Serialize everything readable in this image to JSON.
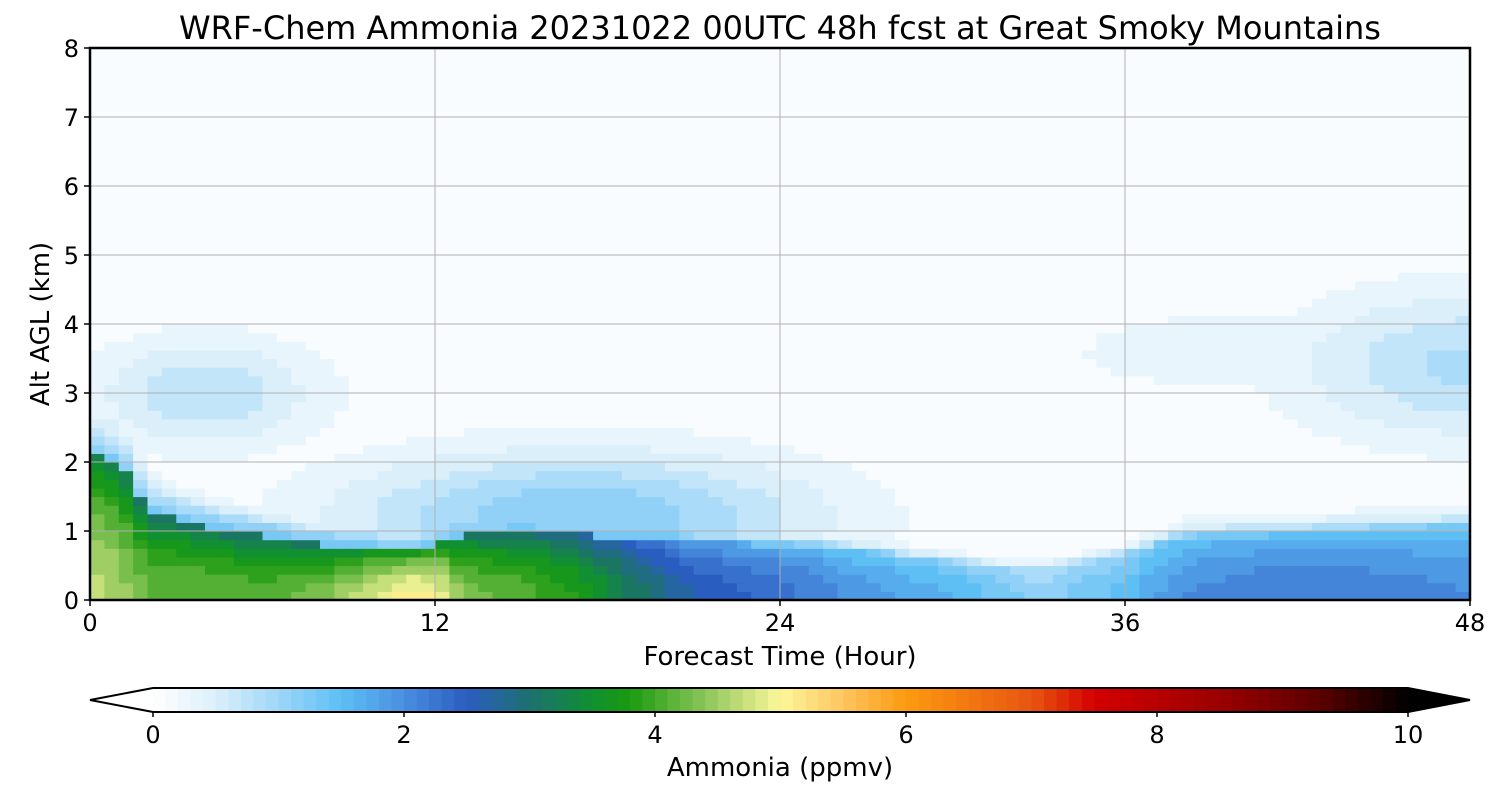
{
  "chart_data": {
    "type": "heatmap",
    "subtype": "time-height filled contour",
    "title": "WRF-Chem Ammonia  20231022 00UTC 48h fcst at Great Smoky Mountains",
    "xlabel": "Forecast Time (Hour)",
    "ylabel": "Alt AGL (km)",
    "xlim": [
      0,
      48
    ],
    "ylim": [
      0,
      8
    ],
    "x_ticks": [
      "0",
      "12",
      "24",
      "36",
      "48"
    ],
    "y_ticks": [
      "0",
      "1",
      "2",
      "3",
      "4",
      "5",
      "6",
      "7",
      "8"
    ],
    "grid": true,
    "colorbar": {
      "label": "Ammonia  (ppmv)",
      "range": [
        0,
        10
      ],
      "ticks": [
        "0",
        "2",
        "4",
        "6",
        "8",
        "10"
      ],
      "extend": "both",
      "orientation": "horizontal",
      "placement": "bottom",
      "stops": [
        {
          "v": 0.0,
          "c": "#ffffff"
        },
        {
          "v": 0.5,
          "c": "#dbeffa"
        },
        {
          "v": 1.0,
          "c": "#9ed6f8"
        },
        {
          "v": 1.5,
          "c": "#5ebff5"
        },
        {
          "v": 2.0,
          "c": "#4a8fe0"
        },
        {
          "v": 2.5,
          "c": "#2a5dc0"
        },
        {
          "v": 3.0,
          "c": "#1d7070"
        },
        {
          "v": 3.5,
          "c": "#109030"
        },
        {
          "v": 3.8,
          "c": "#1a9a10"
        },
        {
          "v": 4.4,
          "c": "#8cc65a"
        },
        {
          "v": 5.0,
          "c": "#fdf79a"
        },
        {
          "v": 5.5,
          "c": "#fdc560"
        },
        {
          "v": 6.0,
          "c": "#fd9a10"
        },
        {
          "v": 7.0,
          "c": "#e85510"
        },
        {
          "v": 7.5,
          "c": "#d40000"
        },
        {
          "v": 8.5,
          "c": "#9a0000"
        },
        {
          "v": 9.3,
          "c": "#5a0000"
        },
        {
          "v": 10.0,
          "c": "#000000"
        }
      ]
    },
    "field": {
      "units": "ppmv",
      "background": 0.05,
      "features": [
        {
          "name": "upper plume early",
          "hour": 4,
          "alt_km": 3.0,
          "sigma_hour": 3.0,
          "sigma_alt_km": 0.6,
          "value": 0.75
        },
        {
          "name": "upper plume late",
          "hour": 48,
          "alt_km": 3.4,
          "sigma_hour": 4.5,
          "sigma_alt_km": 0.8,
          "value": 0.85
        },
        {
          "name": "upper layer late broad",
          "hour": 41,
          "alt_km": 3.6,
          "sigma_hour": 7.0,
          "sigma_alt_km": 0.6,
          "value": 0.3
        },
        {
          "name": "mid layer dome",
          "hour": 17,
          "alt_km": 1.2,
          "sigma_hour": 6.0,
          "sigma_alt_km": 0.7,
          "value": 1.2
        }
      ],
      "boundary_layer": [
        {
          "hour": 0,
          "depth_km": 2.1,
          "surface": 4.7
        },
        {
          "hour": 1,
          "depth_km": 2.0,
          "surface": 4.5
        },
        {
          "hour": 2,
          "depth_km": 1.3,
          "surface": 4.2
        },
        {
          "hour": 4,
          "depth_km": 1.05,
          "surface": 4.2
        },
        {
          "hour": 6,
          "depth_km": 0.95,
          "surface": 4.1
        },
        {
          "hour": 8,
          "depth_km": 0.8,
          "surface": 4.3
        },
        {
          "hour": 10,
          "depth_km": 0.75,
          "surface": 4.8
        },
        {
          "hour": 11,
          "depth_km": 0.7,
          "surface": 5.1
        },
        {
          "hour": 12,
          "depth_km": 0.8,
          "surface": 5.0
        },
        {
          "hour": 13,
          "depth_km": 0.95,
          "surface": 4.3
        },
        {
          "hour": 15,
          "depth_km": 1.0,
          "surface": 4.1
        },
        {
          "hour": 17,
          "depth_km": 0.95,
          "surface": 3.8
        },
        {
          "hour": 19,
          "depth_km": 0.9,
          "surface": 3.1
        },
        {
          "hour": 21,
          "depth_km": 0.85,
          "surface": 2.6
        },
        {
          "hour": 24,
          "depth_km": 0.8,
          "surface": 2.3
        },
        {
          "hour": 27,
          "depth_km": 0.7,
          "surface": 1.9
        },
        {
          "hour": 30,
          "depth_km": 0.55,
          "surface": 1.6
        },
        {
          "hour": 33,
          "depth_km": 0.45,
          "surface": 1.1
        },
        {
          "hour": 36,
          "depth_km": 0.65,
          "surface": 1.5
        },
        {
          "hour": 38,
          "depth_km": 0.9,
          "surface": 2.0
        },
        {
          "hour": 42,
          "depth_km": 0.95,
          "surface": 2.2
        },
        {
          "hour": 45,
          "depth_km": 1.0,
          "surface": 2.1
        },
        {
          "hour": 48,
          "depth_km": 1.05,
          "surface": 2.0
        }
      ]
    }
  }
}
